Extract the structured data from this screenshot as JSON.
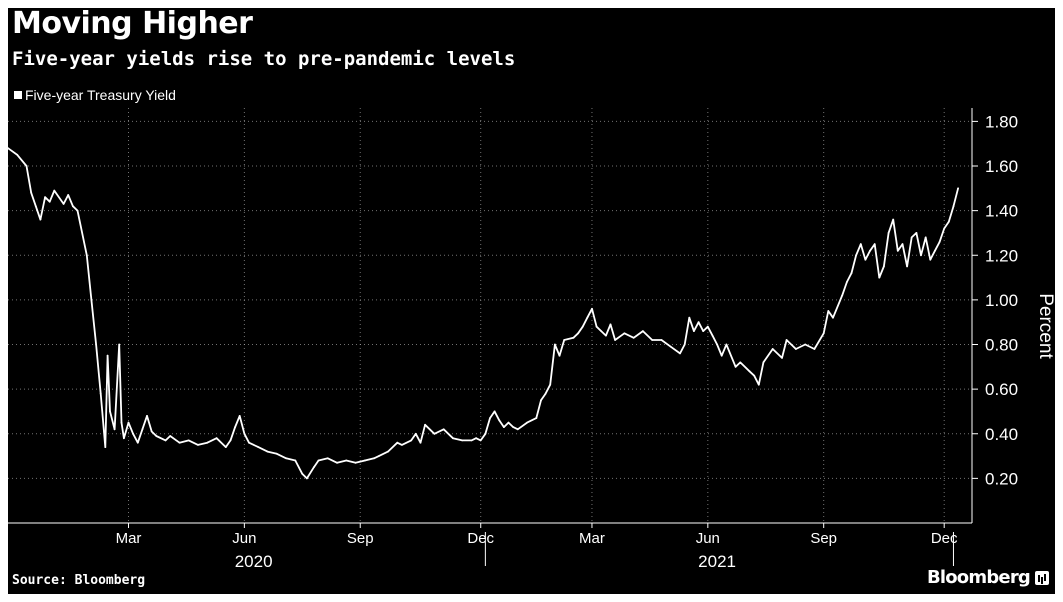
{
  "header": {
    "title": "Moving Higher",
    "subtitle": "Five-year yields rise to pre-pandemic levels"
  },
  "footer": {
    "source": "Source: Bloomberg",
    "brand": "Bloomberg"
  },
  "colors": {
    "background": "#000000",
    "line": "#ffffff",
    "grid": "#bfbfbf",
    "text": "#ffffff"
  },
  "chart_data": {
    "type": "line",
    "title": "Moving Higher",
    "subtitle": "Five-year yields rise to pre-pandemic levels",
    "xlabel": "",
    "ylabel": "Percent",
    "ylim": [
      0.0,
      1.86
    ],
    "y_ticks": [
      0.2,
      0.4,
      0.6,
      0.8,
      1.0,
      1.2,
      1.4,
      1.6,
      1.8
    ],
    "y_tick_labels": [
      "0.20",
      "0.40",
      "0.60",
      "0.80",
      "1.00",
      "1.20",
      "1.40",
      "1.60",
      "1.80"
    ],
    "x_range": [
      2019.9,
      2021.98
    ],
    "x_ticks": [
      {
        "label": "Mar",
        "x": 2020.16
      },
      {
        "label": "Jun",
        "x": 2020.41
      },
      {
        "label": "Sep",
        "x": 2020.66
      },
      {
        "label": "Dec",
        "x": 2020.92
      },
      {
        "label": "Mar",
        "x": 2021.16
      },
      {
        "label": "Jun",
        "x": 2021.41
      },
      {
        "label": "Sep",
        "x": 2021.66
      },
      {
        "label": "Dec",
        "x": 2021.92
      }
    ],
    "x_year_labels": [
      {
        "label": "2020",
        "x": 2020.43
      },
      {
        "label": "2021",
        "x": 2021.43
      }
    ],
    "x_year_dividers": [
      2020.93,
      2021.94
    ],
    "grid": true,
    "legend": {
      "position": "top-left",
      "entries": [
        "Five-year Treasury Yield"
      ]
    },
    "series": [
      {
        "name": "Five-year Treasury Yield",
        "points": [
          [
            2019.9,
            1.68
          ],
          [
            2019.92,
            1.65
          ],
          [
            2019.94,
            1.6
          ],
          [
            2019.95,
            1.48
          ],
          [
            2019.96,
            1.42
          ],
          [
            2019.97,
            1.36
          ],
          [
            2019.98,
            1.46
          ],
          [
            2019.99,
            1.44
          ],
          [
            2020.0,
            1.49
          ],
          [
            2020.02,
            1.43
          ],
          [
            2020.03,
            1.47
          ],
          [
            2020.04,
            1.42
          ],
          [
            2020.05,
            1.4
          ],
          [
            2020.07,
            1.2
          ],
          [
            2020.08,
            1.0
          ],
          [
            2020.09,
            0.8
          ],
          [
            2020.1,
            0.58
          ],
          [
            2020.11,
            0.34
          ],
          [
            2020.115,
            0.75
          ],
          [
            2020.12,
            0.5
          ],
          [
            2020.13,
            0.42
          ],
          [
            2020.14,
            0.8
          ],
          [
            2020.145,
            0.45
          ],
          [
            2020.15,
            0.38
          ],
          [
            2020.16,
            0.45
          ],
          [
            2020.17,
            0.4
          ],
          [
            2020.18,
            0.36
          ],
          [
            2020.19,
            0.42
          ],
          [
            2020.2,
            0.48
          ],
          [
            2020.21,
            0.41
          ],
          [
            2020.22,
            0.39
          ],
          [
            2020.24,
            0.37
          ],
          [
            2020.25,
            0.39
          ],
          [
            2020.27,
            0.36
          ],
          [
            2020.29,
            0.37
          ],
          [
            2020.31,
            0.35
          ],
          [
            2020.33,
            0.36
          ],
          [
            2020.35,
            0.38
          ],
          [
            2020.37,
            0.34
          ],
          [
            2020.38,
            0.37
          ],
          [
            2020.39,
            0.43
          ],
          [
            2020.4,
            0.48
          ],
          [
            2020.41,
            0.4
          ],
          [
            2020.42,
            0.36
          ],
          [
            2020.44,
            0.34
          ],
          [
            2020.46,
            0.32
          ],
          [
            2020.48,
            0.31
          ],
          [
            2020.5,
            0.29
          ],
          [
            2020.52,
            0.28
          ],
          [
            2020.535,
            0.22
          ],
          [
            2020.545,
            0.2
          ],
          [
            2020.56,
            0.25
          ],
          [
            2020.57,
            0.28
          ],
          [
            2020.59,
            0.29
          ],
          [
            2020.61,
            0.27
          ],
          [
            2020.63,
            0.28
          ],
          [
            2020.65,
            0.27
          ],
          [
            2020.67,
            0.28
          ],
          [
            2020.69,
            0.29
          ],
          [
            2020.7,
            0.3
          ],
          [
            2020.72,
            0.32
          ],
          [
            2020.74,
            0.36
          ],
          [
            2020.75,
            0.35
          ],
          [
            2020.77,
            0.37
          ],
          [
            2020.78,
            0.4
          ],
          [
            2020.79,
            0.36
          ],
          [
            2020.8,
            0.44
          ],
          [
            2020.82,
            0.4
          ],
          [
            2020.84,
            0.42
          ],
          [
            2020.86,
            0.38
          ],
          [
            2020.88,
            0.37
          ],
          [
            2020.9,
            0.37
          ],
          [
            2020.91,
            0.38
          ],
          [
            2020.92,
            0.37
          ],
          [
            2020.93,
            0.4
          ],
          [
            2020.94,
            0.47
          ],
          [
            2020.95,
            0.5
          ],
          [
            2020.96,
            0.46
          ],
          [
            2020.97,
            0.43
          ],
          [
            2020.98,
            0.45
          ],
          [
            2020.99,
            0.43
          ],
          [
            2021.0,
            0.42
          ],
          [
            2021.02,
            0.45
          ],
          [
            2021.04,
            0.47
          ],
          [
            2021.05,
            0.55
          ],
          [
            2021.06,
            0.58
          ],
          [
            2021.07,
            0.62
          ],
          [
            2021.08,
            0.8
          ],
          [
            2021.09,
            0.75
          ],
          [
            2021.1,
            0.82
          ],
          [
            2021.12,
            0.83
          ],
          [
            2021.13,
            0.85
          ],
          [
            2021.14,
            0.88
          ],
          [
            2021.15,
            0.92
          ],
          [
            2021.16,
            0.96
          ],
          [
            2021.17,
            0.88
          ],
          [
            2021.18,
            0.86
          ],
          [
            2021.19,
            0.84
          ],
          [
            2021.2,
            0.89
          ],
          [
            2021.21,
            0.82
          ],
          [
            2021.23,
            0.85
          ],
          [
            2021.25,
            0.83
          ],
          [
            2021.27,
            0.86
          ],
          [
            2021.29,
            0.82
          ],
          [
            2021.31,
            0.82
          ],
          [
            2021.33,
            0.79
          ],
          [
            2021.35,
            0.76
          ],
          [
            2021.36,
            0.8
          ],
          [
            2021.37,
            0.92
          ],
          [
            2021.38,
            0.86
          ],
          [
            2021.39,
            0.9
          ],
          [
            2021.4,
            0.86
          ],
          [
            2021.41,
            0.88
          ],
          [
            2021.42,
            0.84
          ],
          [
            2021.43,
            0.8
          ],
          [
            2021.44,
            0.75
          ],
          [
            2021.45,
            0.8
          ],
          [
            2021.47,
            0.7
          ],
          [
            2021.48,
            0.72
          ],
          [
            2021.5,
            0.68
          ],
          [
            2021.51,
            0.66
          ],
          [
            2021.52,
            0.62
          ],
          [
            2021.53,
            0.72
          ],
          [
            2021.55,
            0.78
          ],
          [
            2021.57,
            0.74
          ],
          [
            2021.58,
            0.82
          ],
          [
            2021.6,
            0.78
          ],
          [
            2021.62,
            0.8
          ],
          [
            2021.64,
            0.78
          ],
          [
            2021.66,
            0.85
          ],
          [
            2021.67,
            0.95
          ],
          [
            2021.68,
            0.92
          ],
          [
            2021.7,
            1.02
          ],
          [
            2021.71,
            1.08
          ],
          [
            2021.72,
            1.12
          ],
          [
            2021.73,
            1.2
          ],
          [
            2021.74,
            1.25
          ],
          [
            2021.75,
            1.18
          ],
          [
            2021.76,
            1.22
          ],
          [
            2021.77,
            1.25
          ],
          [
            2021.78,
            1.1
          ],
          [
            2021.79,
            1.15
          ],
          [
            2021.8,
            1.3
          ],
          [
            2021.81,
            1.36
          ],
          [
            2021.82,
            1.22
          ],
          [
            2021.83,
            1.25
          ],
          [
            2021.84,
            1.15
          ],
          [
            2021.85,
            1.28
          ],
          [
            2021.86,
            1.3
          ],
          [
            2021.87,
            1.2
          ],
          [
            2021.88,
            1.28
          ],
          [
            2021.89,
            1.18
          ],
          [
            2021.9,
            1.22
          ],
          [
            2021.91,
            1.26
          ],
          [
            2021.92,
            1.32
          ],
          [
            2021.93,
            1.35
          ],
          [
            2021.94,
            1.42
          ],
          [
            2021.95,
            1.5
          ]
        ]
      }
    ]
  }
}
